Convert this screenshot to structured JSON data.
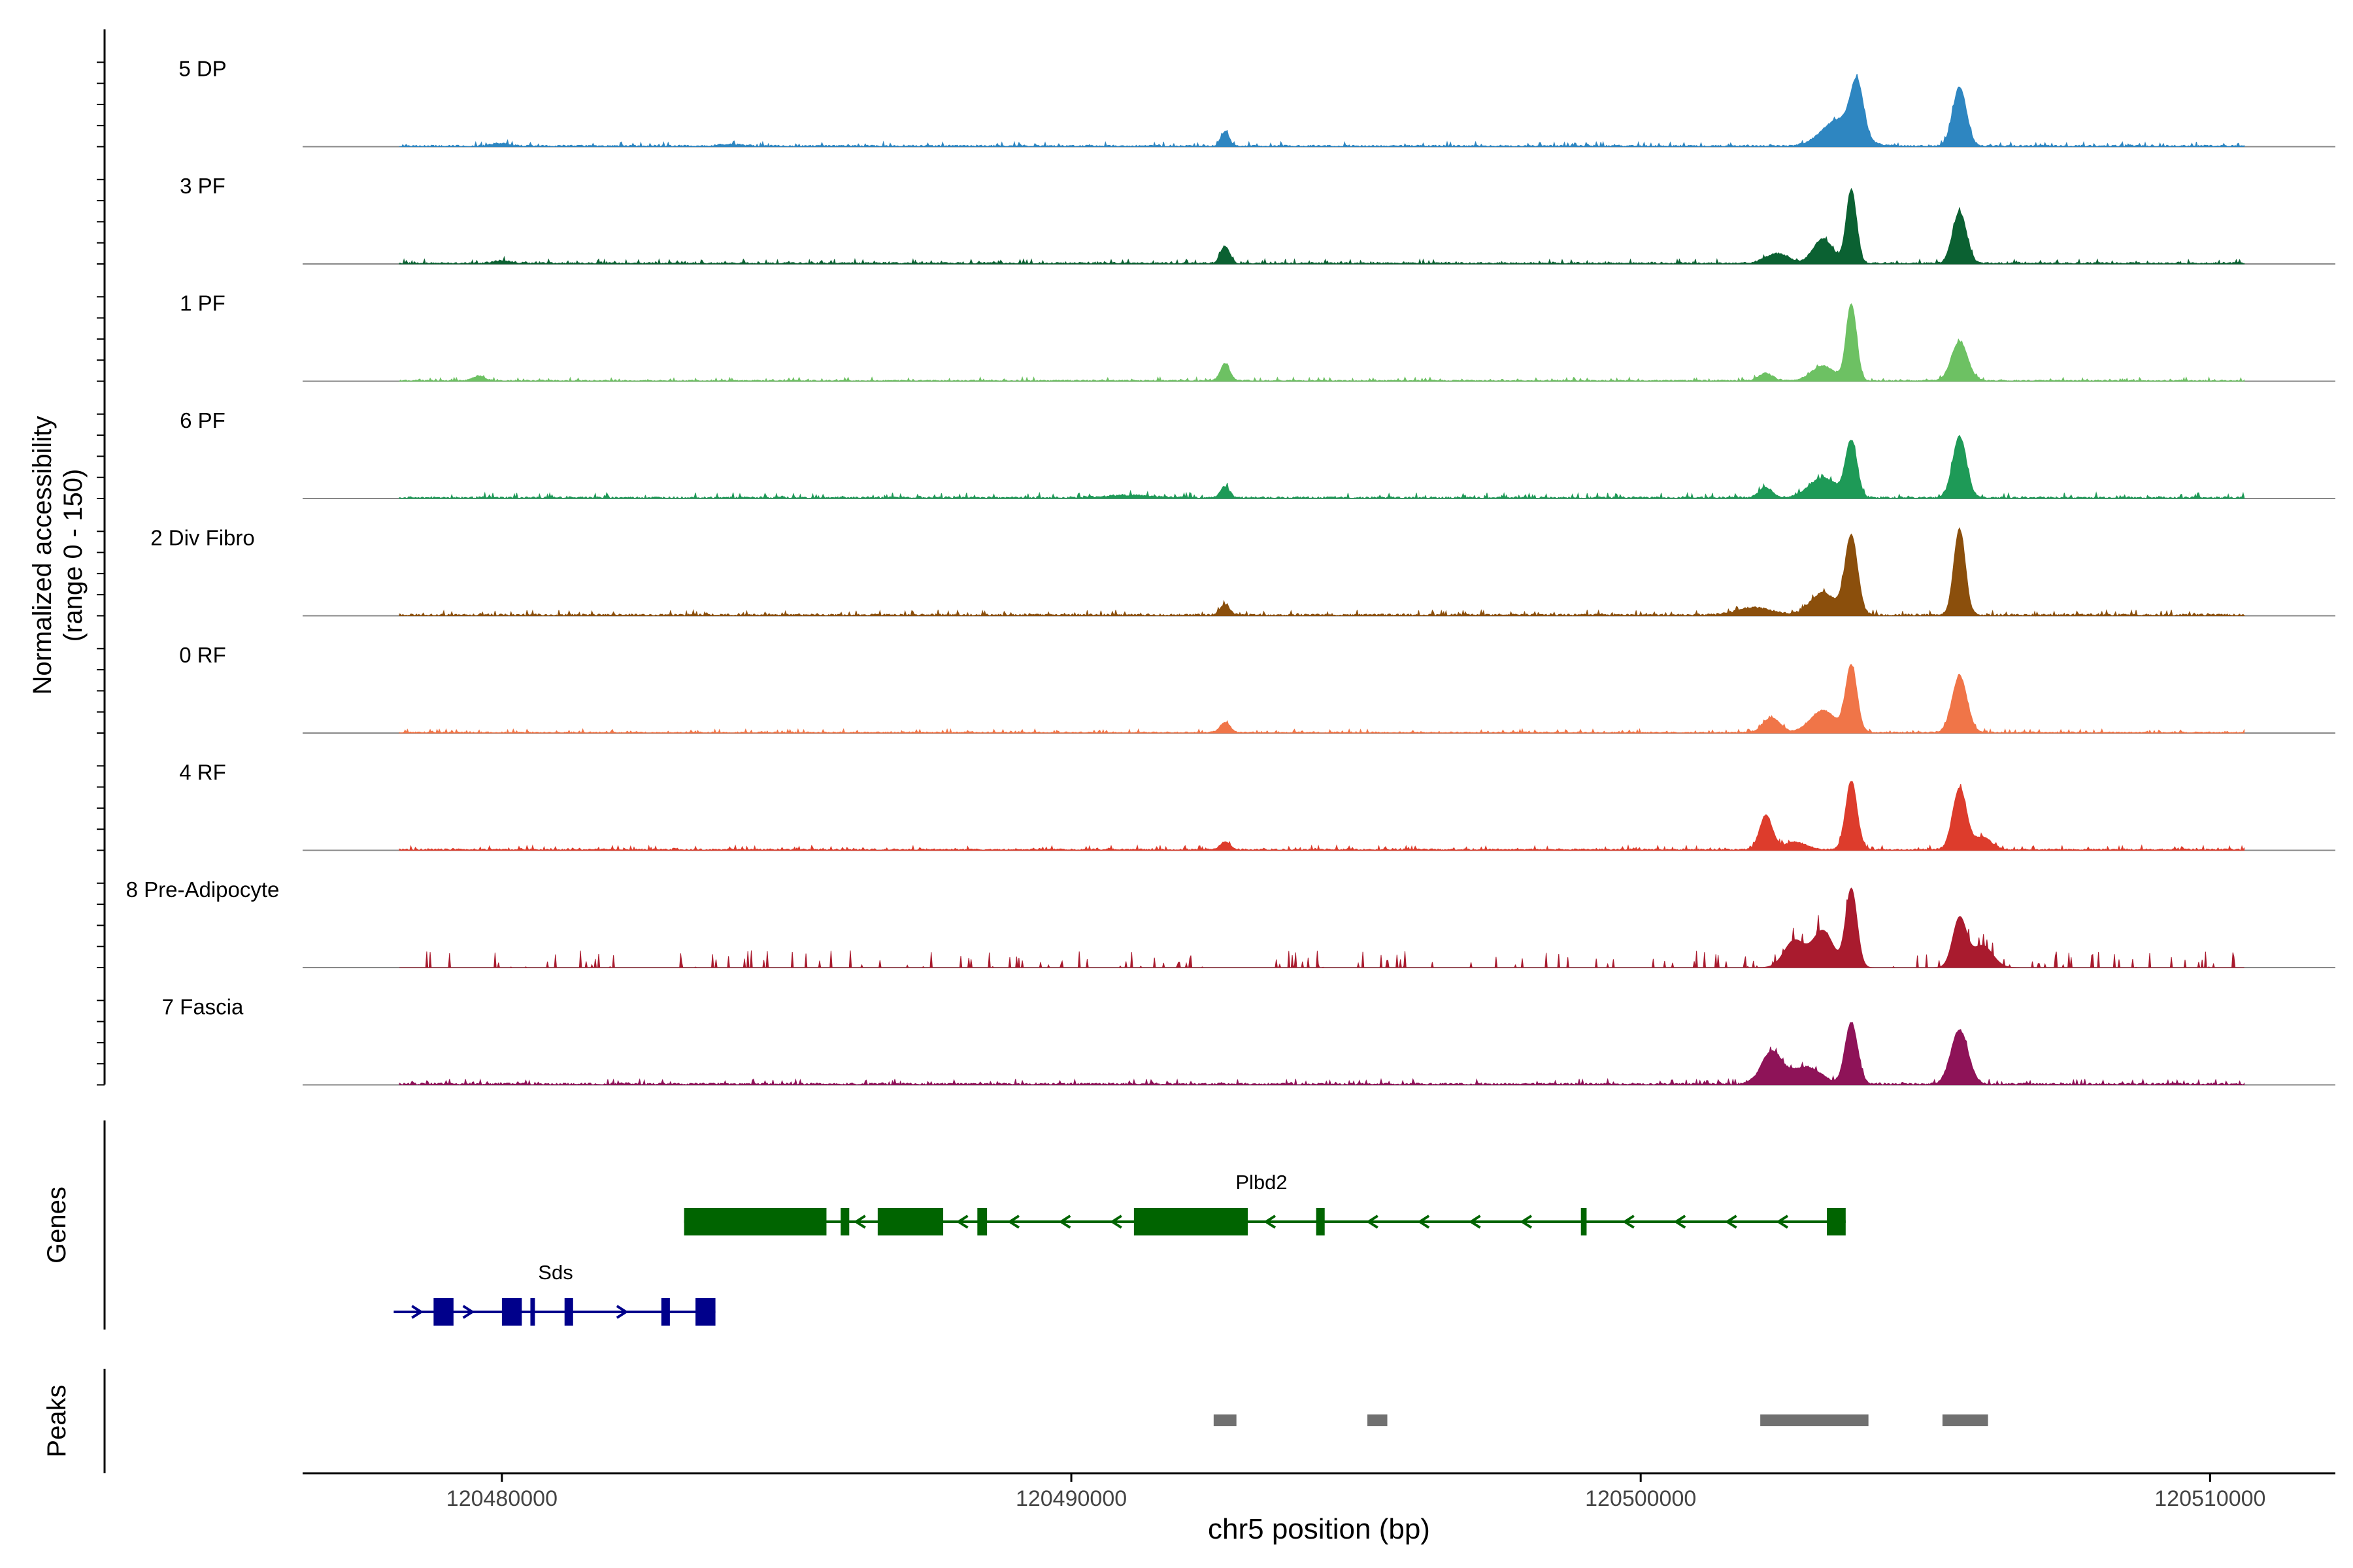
{
  "chart_data": {
    "type": "area",
    "title": "",
    "ylabel_line1": "Normalized accessibility",
    "ylabel_line2": "(range 0 - 150)",
    "xlabel": "chr5 position (bp)",
    "xlim": [
      120476500,
      120512200
    ],
    "ylim": [
      0,
      150
    ],
    "x_ticks": [
      120480000,
      120490000,
      120500000,
      120510000
    ],
    "x_tick_labels": [
      "120480000",
      "120490000",
      "120500000",
      "120510000"
    ],
    "genes_label": "Genes",
    "peaks_label": "Peaks",
    "series": [
      {
        "name": "5 DP",
        "color": "#2E86C1",
        "peaks": [
          [
            120480000,
            2,
            150
          ],
          [
            120484000,
            1.5,
            180
          ],
          [
            120492700,
            12,
            70
          ],
          [
            120503500,
            22,
            300
          ],
          [
            120503800,
            42,
            110
          ],
          [
            120505600,
            48,
            120
          ]
        ],
        "noise": 2.5
      },
      {
        "name": "3 PF",
        "color": "#0B6132",
        "peaks": [
          [
            120480000,
            2,
            150
          ],
          [
            120492700,
            14,
            80
          ],
          [
            120502400,
            8,
            200
          ],
          [
            120503200,
            20,
            170
          ],
          [
            120503700,
            60,
            90
          ],
          [
            120505600,
            42,
            120
          ]
        ],
        "noise": 2.5
      },
      {
        "name": "1 PF",
        "color": "#6DC163",
        "peaks": [
          [
            120479600,
            4,
            100
          ],
          [
            120492700,
            14,
            80
          ],
          [
            120502200,
            6,
            120
          ],
          [
            120503200,
            12,
            200
          ],
          [
            120503700,
            62,
            90
          ],
          [
            120505600,
            32,
            140
          ]
        ],
        "noise": 2
      },
      {
        "name": "6 PF",
        "color": "#1E9A57",
        "peaks": [
          [
            120492700,
            9,
            80
          ],
          [
            120491000,
            2,
            400
          ],
          [
            120502200,
            8,
            120
          ],
          [
            120503200,
            16,
            250
          ],
          [
            120503700,
            45,
            100
          ],
          [
            120505600,
            50,
            120
          ]
        ],
        "noise": 3
      },
      {
        "name": "2 Div Fibro",
        "color": "#8B4F0C",
        "peaks": [
          [
            120492700,
            9,
            80
          ],
          [
            120502000,
            6,
            300
          ],
          [
            120503200,
            18,
            220
          ],
          [
            120503700,
            64,
            110
          ],
          [
            120505600,
            70,
            100
          ]
        ],
        "noise": 3
      },
      {
        "name": "0 RF",
        "color": "#F07548",
        "peaks": [
          [
            120492700,
            8,
            90
          ],
          [
            120502300,
            12,
            150
          ],
          [
            120503200,
            18,
            220
          ],
          [
            120503700,
            54,
            100
          ],
          [
            120505600,
            46,
            130
          ]
        ],
        "noise": 2
      },
      {
        "name": "4 RF",
        "color": "#DD3C2C",
        "peaks": [
          [
            120492700,
            6,
            90
          ],
          [
            120502200,
            28,
            110
          ],
          [
            120502700,
            6,
            200
          ],
          [
            120503700,
            56,
            100
          ],
          [
            120505600,
            50,
            120
          ],
          [
            120506000,
            10,
            160
          ]
        ],
        "noise": 2.5
      },
      {
        "name": "8 Pre-Adipocyte",
        "color": "#A91B2E",
        "peaks": [
          [
            120503700,
            64,
            100
          ],
          [
            120503200,
            30,
            180
          ],
          [
            120502700,
            22,
            180
          ],
          [
            120505600,
            40,
            120
          ],
          [
            120506000,
            18,
            180
          ]
        ],
        "noise": 10
      },
      {
        "name": "7 Fascia",
        "color": "#8E1358",
        "peaks": [
          [
            120502300,
            26,
            180
          ],
          [
            120502900,
            14,
            260
          ],
          [
            120503700,
            50,
            110
          ],
          [
            120505600,
            44,
            150
          ]
        ],
        "noise": 3
      }
    ],
    "genes": [
      {
        "name": "Plbd2",
        "strand": "-",
        "color": "#006400",
        "start": 120483200,
        "end": 120503600,
        "exons": [
          [
            120483200,
            120485700
          ],
          [
            120485950,
            120486100
          ],
          [
            120486600,
            120487750
          ],
          [
            120488350,
            120488520
          ],
          [
            120491100,
            120493100
          ],
          [
            120494300,
            120494450
          ],
          [
            120498950,
            120499050
          ],
          [
            120503270,
            120503600
          ]
        ]
      },
      {
        "name": "Sds",
        "strand": "+",
        "color": "#00008B",
        "start": 120478100,
        "end": 120483750,
        "exons": [
          [
            120478800,
            120479150
          ],
          [
            120480000,
            120480350
          ],
          [
            120480500,
            120480580
          ],
          [
            120481100,
            120481250
          ],
          [
            120482800,
            120482950
          ],
          [
            120483400,
            120483750
          ]
        ]
      }
    ],
    "peaks": [
      [
        120492500,
        120492900
      ],
      [
        120495200,
        120495550
      ],
      [
        120502100,
        120504000
      ],
      [
        120505300,
        120506100
      ]
    ]
  }
}
